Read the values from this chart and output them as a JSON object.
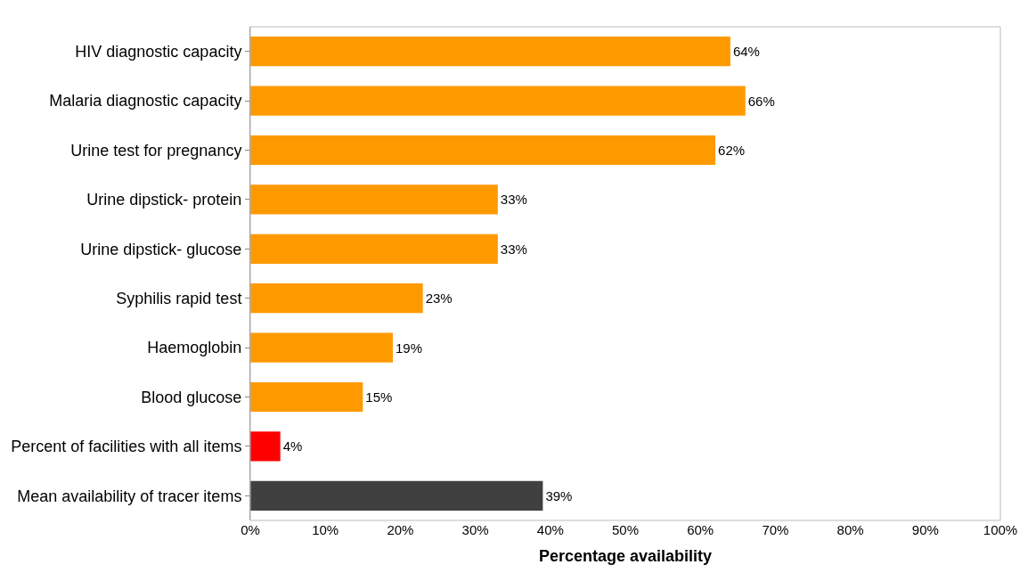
{
  "chart_data": {
    "type": "bar",
    "orientation": "horizontal",
    "xlabel": "Percentage availability",
    "categories": [
      "HIV diagnostic capacity",
      "Malaria diagnostic capacity",
      "Urine test for pregnancy",
      "Urine dipstick- protein",
      "Urine dipstick- glucose",
      "Syphilis rapid test",
      "Haemoglobin",
      "Blood glucose",
      "Percent of facilities with all items",
      "Mean availability of tracer items"
    ],
    "values": [
      64,
      66,
      62,
      33,
      33,
      23,
      19,
      15,
      4,
      39
    ],
    "value_labels": [
      "64%",
      "66%",
      "62%",
      "33%",
      "33%",
      "23%",
      "19%",
      "15%",
      "4%",
      "39%"
    ],
    "colors": [
      "#ff9900",
      "#ff9900",
      "#ff9900",
      "#ff9900",
      "#ff9900",
      "#ff9900",
      "#ff9900",
      "#ff9900",
      "#ff0000",
      "#404040"
    ],
    "xlim": [
      0,
      100
    ],
    "xticks": [
      {
        "value": 0,
        "label": "0%"
      },
      {
        "value": 10,
        "label": "10%"
      },
      {
        "value": 20,
        "label": "20%"
      },
      {
        "value": 30,
        "label": "30%"
      },
      {
        "value": 40,
        "label": "40%"
      },
      {
        "value": 50,
        "label": "50%"
      },
      {
        "value": 60,
        "label": "60%"
      },
      {
        "value": 70,
        "label": "70%"
      },
      {
        "value": 80,
        "label": "80%"
      },
      {
        "value": 90,
        "label": "90%"
      },
      {
        "value": 100,
        "label": "100%"
      }
    ]
  }
}
